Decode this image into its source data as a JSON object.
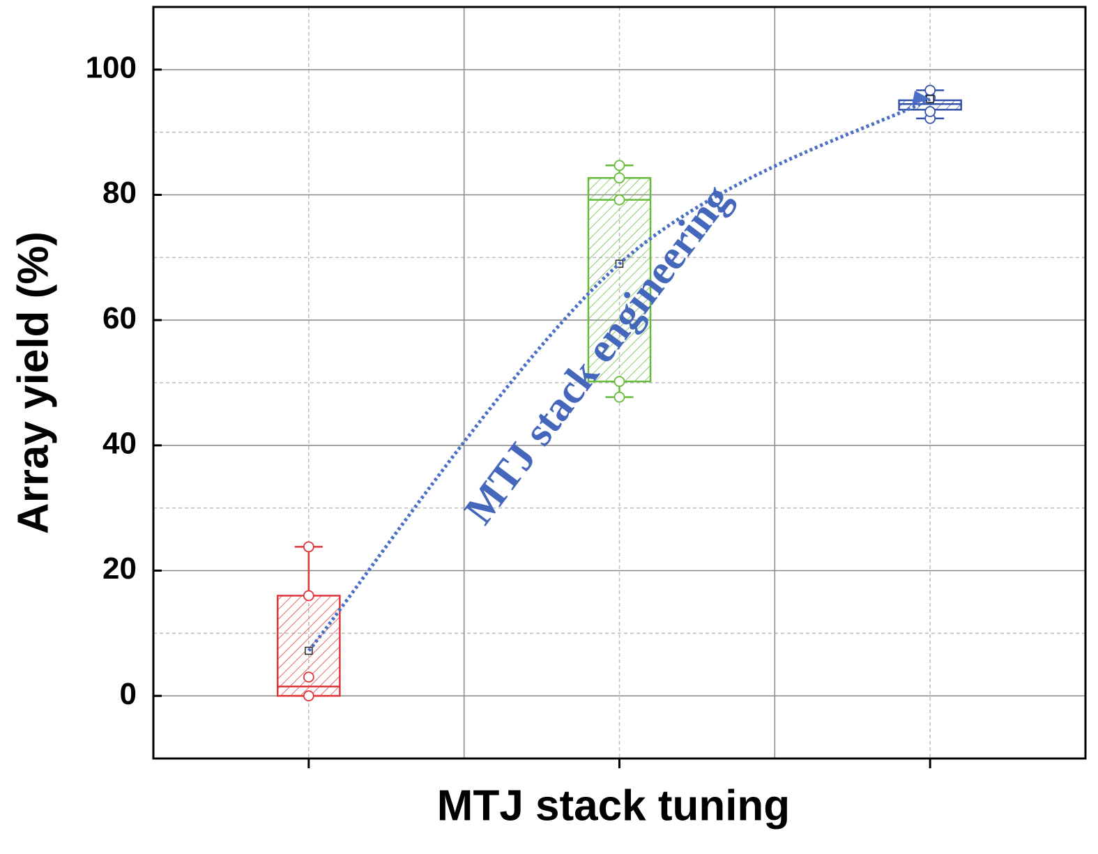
{
  "chart_data": {
    "type": "box",
    "x_label": "MTJ stack tuning",
    "y_label": "Array yield (%)",
    "annotation": "MTJ stack engineering",
    "categories": [
      null,
      null,
      null
    ],
    "ylim": [
      -10,
      110
    ],
    "yticks": [
      0,
      20,
      40,
      60,
      80,
      100
    ],
    "minor_yticks": [
      10,
      30,
      50,
      70,
      90
    ],
    "grid": true,
    "trend_color": "#4a6fc4",
    "boxes": [
      {
        "color": "#e0343a",
        "whisker_low": 0,
        "q1": 0,
        "median": 1.5,
        "q3": 16,
        "whisker_high": 23.8,
        "mean": 7.2,
        "points": [
          0,
          3,
          16,
          23.8
        ]
      },
      {
        "color": "#66bb3a",
        "whisker_low": 47.7,
        "q1": 50.2,
        "median": 79.2,
        "q3": 82.7,
        "whisker_high": 84.7,
        "mean": 69,
        "points": [
          47.7,
          50.2,
          79.2,
          82.7,
          84.7
        ]
      },
      {
        "color": "#3352a8",
        "whisker_low": 92.2,
        "q1": 93.6,
        "median": 94.5,
        "q3": 95.1,
        "whisker_high": 96.7,
        "mean": 95.3,
        "points": [
          92.2,
          93.3,
          95.5,
          96.7
        ]
      }
    ]
  }
}
